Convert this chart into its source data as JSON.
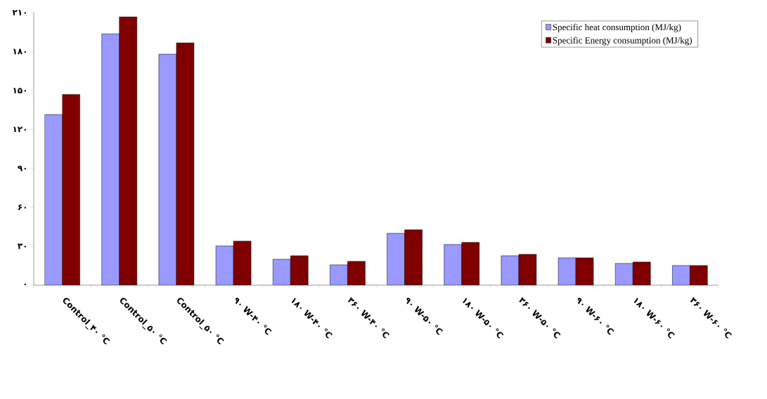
{
  "chart_data": {
    "type": "bar",
    "categories": [
      "Control_۴۰ °C",
      "Control_۵۰ °C",
      "Control_۵۰ °C",
      "۹۰ W-۴۰ °C",
      "۱۸۰ W-۴۰ °C",
      "۳۶۰ W-۴۰ °C",
      "۹۰ W-۵۰ °C",
      "۱۸۰ W-۵۰ °C",
      "۳۶۰ W-۵۰ °C",
      "۹۰ W-۶۰ °C",
      "۱۸۰ W-۶۰ °C",
      "۳۶۰ W-۶۰ °C"
    ],
    "series": [
      {
        "name": "Specific heat consumption (MJ/kg)",
        "color": "#9999ff",
        "values": [
          131.5,
          193.7,
          178,
          30.3,
          20,
          15.7,
          40,
          31.4,
          22.7,
          21.1,
          16.8,
          15.2
        ]
      },
      {
        "name": "Specific Energy consumption (MJ/kg)",
        "color": "#800000",
        "values": [
          147,
          206.7,
          186.7,
          34,
          22.7,
          18.4,
          42.7,
          33,
          23.8,
          21.1,
          17.9,
          15.2
        ]
      }
    ],
    "ylim": [
      0,
      210
    ],
    "yticks": [
      {
        "value": 0,
        "label": "۰"
      },
      {
        "value": 30,
        "label": "۳۰"
      },
      {
        "value": 60,
        "label": "۶۰"
      },
      {
        "value": 90,
        "label": "۹۰"
      },
      {
        "value": 120,
        "label": "۱۲۰"
      },
      {
        "value": 150,
        "label": "۱۵۰"
      },
      {
        "value": 180,
        "label": "۱۸۰"
      },
      {
        "value": 210,
        "label": "۲۱۰"
      }
    ],
    "grid": false,
    "legend": "top right"
  }
}
